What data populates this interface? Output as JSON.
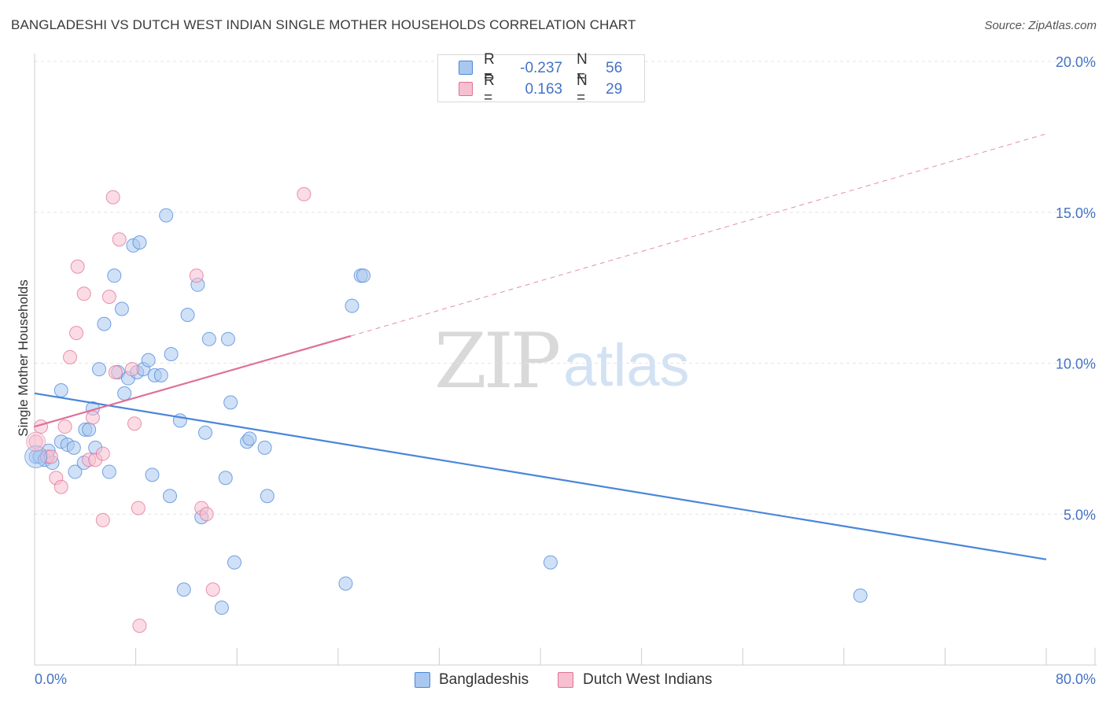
{
  "chart_data": {
    "type": "scatter",
    "title": "BANGLADESHI VS DUTCH WEST INDIAN SINGLE MOTHER HOUSEHOLDS CORRELATION CHART",
    "source": "Source: ZipAtlas.com",
    "xlabel": "",
    "ylabel": "Single Mother Households",
    "xlim": [
      0,
      80
    ],
    "ylim": [
      0,
      20
    ],
    "x_tick_labels": [
      {
        "value": 0,
        "label": "0.0%"
      },
      {
        "value": 80,
        "label": "80.0%"
      }
    ],
    "y_ticks": [
      {
        "value": 5,
        "label": "5.0%"
      },
      {
        "value": 10,
        "label": "10.0%"
      },
      {
        "value": 15,
        "label": "15.0%"
      },
      {
        "value": 20,
        "label": "20.0%"
      }
    ],
    "x_minor_ticks": [
      0,
      8,
      16,
      24,
      32,
      40,
      48,
      56,
      64,
      72,
      80
    ],
    "watermark": {
      "part1": "ZIP",
      "part2": "atlas"
    },
    "legend": [
      {
        "r_label": "R =",
        "r_value": "-0.237",
        "n_label": "N =",
        "n_value": "56"
      },
      {
        "r_label": "R =",
        "r_value": "0.163",
        "n_label": "N =",
        "n_value": "29"
      }
    ],
    "series": [
      {
        "name": "Bangladeshis",
        "color": "#4a86d8",
        "fill": "#a9c8f0",
        "trend": {
          "x": [
            0,
            80
          ],
          "y": [
            9.0,
            3.5
          ],
          "style": "solid"
        },
        "points": [
          [
            0.1,
            6.9
          ],
          [
            0.4,
            6.9
          ],
          [
            0.8,
            6.8
          ],
          [
            1.1,
            7.1
          ],
          [
            1.4,
            6.7
          ],
          [
            2.1,
            7.4
          ],
          [
            2.1,
            9.1
          ],
          [
            2.6,
            7.3
          ],
          [
            3.1,
            7.2
          ],
          [
            3.2,
            6.4
          ],
          [
            3.9,
            6.7
          ],
          [
            4.0,
            7.8
          ],
          [
            4.3,
            7.8
          ],
          [
            4.6,
            8.5
          ],
          [
            4.8,
            7.2
          ],
          [
            5.1,
            9.8
          ],
          [
            5.5,
            11.3
          ],
          [
            5.9,
            6.4
          ],
          [
            6.3,
            12.9
          ],
          [
            6.6,
            9.7
          ],
          [
            6.9,
            11.8
          ],
          [
            7.1,
            9.0
          ],
          [
            7.4,
            9.5
          ],
          [
            7.8,
            13.9
          ],
          [
            8.1,
            9.7
          ],
          [
            8.3,
            14.0
          ],
          [
            8.6,
            9.8
          ],
          [
            9.0,
            10.1
          ],
          [
            9.3,
            6.3
          ],
          [
            9.5,
            9.6
          ],
          [
            10.0,
            9.6
          ],
          [
            10.4,
            14.9
          ],
          [
            10.7,
            5.6
          ],
          [
            10.8,
            10.3
          ],
          [
            11.5,
            8.1
          ],
          [
            11.8,
            2.5
          ],
          [
            12.1,
            11.6
          ],
          [
            12.9,
            12.6
          ],
          [
            13.2,
            4.9
          ],
          [
            13.5,
            7.7
          ],
          [
            13.8,
            10.8
          ],
          [
            14.8,
            1.9
          ],
          [
            15.1,
            6.2
          ],
          [
            15.3,
            10.8
          ],
          [
            15.5,
            8.7
          ],
          [
            15.8,
            3.4
          ],
          [
            16.8,
            7.4
          ],
          [
            17.0,
            7.5
          ],
          [
            18.2,
            7.2
          ],
          [
            18.4,
            5.6
          ],
          [
            24.6,
            2.7
          ],
          [
            25.1,
            11.9
          ],
          [
            25.8,
            12.9
          ],
          [
            26.0,
            12.9
          ],
          [
            40.8,
            3.4
          ],
          [
            65.3,
            2.3
          ]
        ]
      },
      {
        "name": "Dutch West Indians",
        "color": "#e07095",
        "fill": "#f7c0d0",
        "trend": {
          "x": [
            0,
            25
          ],
          "y": [
            7.9,
            10.9
          ],
          "style": "solid",
          "extend_to_x": 80,
          "extend_y": 17.6,
          "extension_style": "dashed"
        },
        "points": [
          [
            0.1,
            7.4
          ],
          [
            0.5,
            7.9
          ],
          [
            1.0,
            6.9
          ],
          [
            1.3,
            6.9
          ],
          [
            1.7,
            6.2
          ],
          [
            2.1,
            5.9
          ],
          [
            2.4,
            7.9
          ],
          [
            2.8,
            10.2
          ],
          [
            3.3,
            11.0
          ],
          [
            3.4,
            13.2
          ],
          [
            3.9,
            12.3
          ],
          [
            4.3,
            6.8
          ],
          [
            4.6,
            8.2
          ],
          [
            4.8,
            6.8
          ],
          [
            5.4,
            7.0
          ],
          [
            5.4,
            4.8
          ],
          [
            5.9,
            12.2
          ],
          [
            6.2,
            15.5
          ],
          [
            6.4,
            9.7
          ],
          [
            6.7,
            14.1
          ],
          [
            7.7,
            9.8
          ],
          [
            7.9,
            8.0
          ],
          [
            8.2,
            5.2
          ],
          [
            8.3,
            1.3
          ],
          [
            12.8,
            12.9
          ],
          [
            13.2,
            5.2
          ],
          [
            13.6,
            5.0
          ],
          [
            14.1,
            2.5
          ],
          [
            21.3,
            15.6
          ]
        ]
      }
    ]
  }
}
